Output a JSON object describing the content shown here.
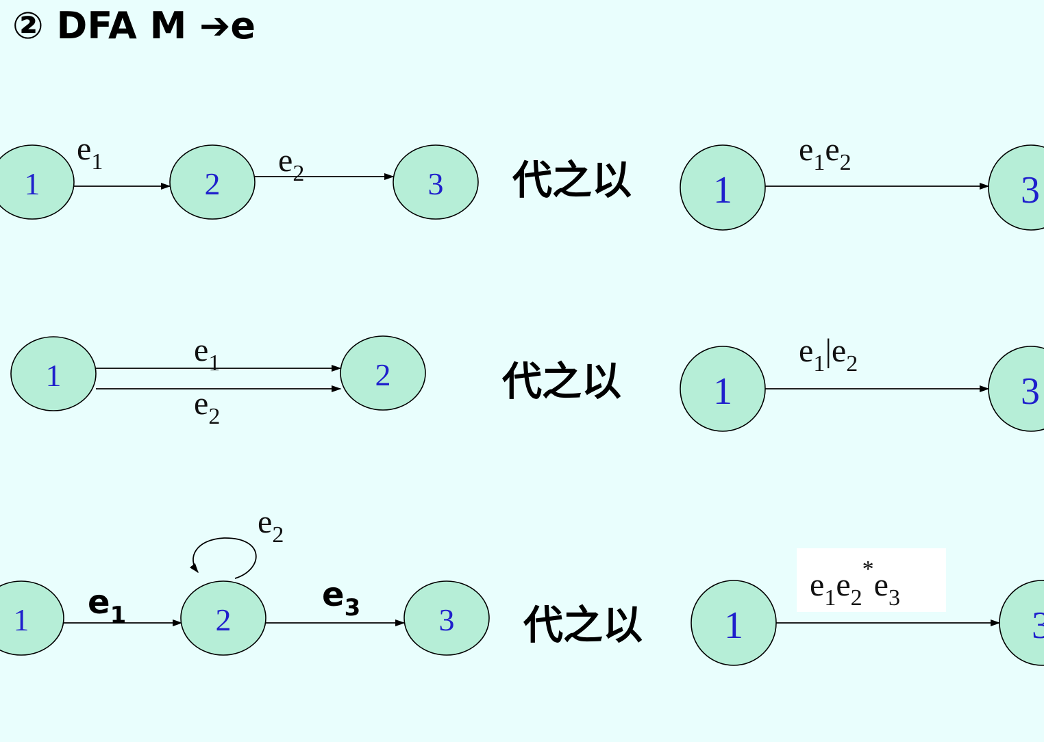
{
  "title": "② DFA M ➔e",
  "replace_text": "代之以",
  "rows": [
    {
      "left_states": [
        "1",
        "2",
        "3"
      ],
      "left_labels": [
        "e",
        "1",
        "e",
        "2"
      ],
      "right_states": [
        "1",
        "3"
      ],
      "right_label": [
        "e",
        "1",
        "e",
        "2"
      ]
    },
    {
      "left_states": [
        "1",
        "2"
      ],
      "left_labels": [
        "e",
        "1",
        "e",
        "2"
      ],
      "right_states": [
        "1",
        "3"
      ],
      "right_label": [
        "e",
        "1",
        "|e",
        "2"
      ]
    },
    {
      "left_states": [
        "1",
        "2",
        "3"
      ],
      "left_labels": [
        "e",
        "1",
        "e",
        "2",
        "e",
        "3"
      ],
      "right_states": [
        "1",
        "3"
      ],
      "right_label": [
        "e",
        "1",
        "e",
        "2",
        "*",
        "e",
        "3"
      ]
    }
  ]
}
